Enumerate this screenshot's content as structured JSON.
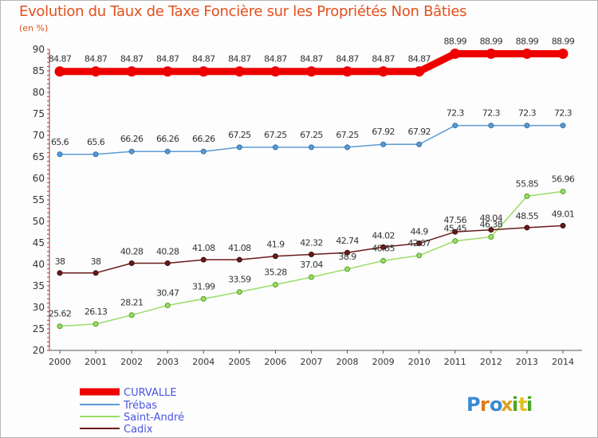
{
  "title": "Evolution du Taux de Taxe Foncière sur les Propriétés Non Bâties",
  "subtitle": "(en %)",
  "logo_text": "Proxiti",
  "chart_data": {
    "type": "line",
    "title": "Evolution du Taux de Taxe Foncière sur les Propriétés Non Bâties",
    "ylabel": "(en %)",
    "xlabel": "",
    "x": [
      "2000",
      "2001",
      "2002",
      "2003",
      "2004",
      "2005",
      "2006",
      "2007",
      "2008",
      "2009",
      "2010",
      "2011",
      "2012",
      "2013",
      "2014"
    ],
    "ylim": [
      20,
      90
    ],
    "yticks": [
      "20",
      "25",
      "30",
      "35",
      "40",
      "45",
      "50",
      "55",
      "60",
      "65",
      "70",
      "75",
      "80",
      "85",
      "90"
    ],
    "grid": false,
    "legend": "bottom-left",
    "series": [
      {
        "name": "CURVALLE",
        "color": "#ee0000",
        "values": [
          84.87,
          84.87,
          84.87,
          84.87,
          84.87,
          84.87,
          84.87,
          84.87,
          84.87,
          84.87,
          84.87,
          88.99,
          88.99,
          88.99,
          88.99
        ],
        "labels": [
          "84.87",
          "84.87",
          "84.87",
          "84.87",
          "84.87",
          "84.87",
          "84.87",
          "84.87",
          "84.87",
          "84.87",
          "84.87",
          "88.99",
          "88.99",
          "88.99",
          "88.99"
        ]
      },
      {
        "name": "Trébas",
        "color": "#5b9bd5",
        "values": [
          65.6,
          65.6,
          66.26,
          66.26,
          66.26,
          67.25,
          67.25,
          67.25,
          67.25,
          67.92,
          67.92,
          72.3,
          72.3,
          72.3,
          72.3
        ],
        "labels": [
          "65.6",
          "65.6",
          "66.26",
          "66.26",
          "66.26",
          "67.25",
          "67.25",
          "67.25",
          "67.25",
          "67.92",
          "67.92",
          "72.3",
          "72.3",
          "72.3",
          "72.3"
        ]
      },
      {
        "name": "Saint-André",
        "color": "#99dd66",
        "values": [
          25.62,
          26.13,
          28.21,
          30.47,
          31.99,
          33.59,
          35.28,
          37.04,
          38.9,
          40.85,
          42.07,
          45.45,
          46.38,
          55.85,
          56.96
        ],
        "labels": [
          "25.62",
          "26.13",
          "28.21",
          "30.47",
          "31.99",
          "33.59",
          "35.28",
          "37.04",
          "38.9",
          "40.85",
          "42.07",
          "45.45",
          "46.38",
          "55.85",
          "56.96"
        ]
      },
      {
        "name": "Cadix",
        "color": "#6b1a1a",
        "values": [
          38,
          38,
          40.28,
          40.28,
          41.08,
          41.08,
          41.9,
          42.32,
          42.74,
          44.02,
          44.9,
          47.56,
          48.04,
          48.55,
          49.01
        ],
        "labels": [
          "38",
          "38",
          "40.28",
          "40.28",
          "41.08",
          "41.08",
          "41.9",
          "42.32",
          "42.74",
          "44.02",
          "44.9",
          "47.56",
          "48.04",
          "48.55",
          "49.01"
        ]
      }
    ]
  }
}
